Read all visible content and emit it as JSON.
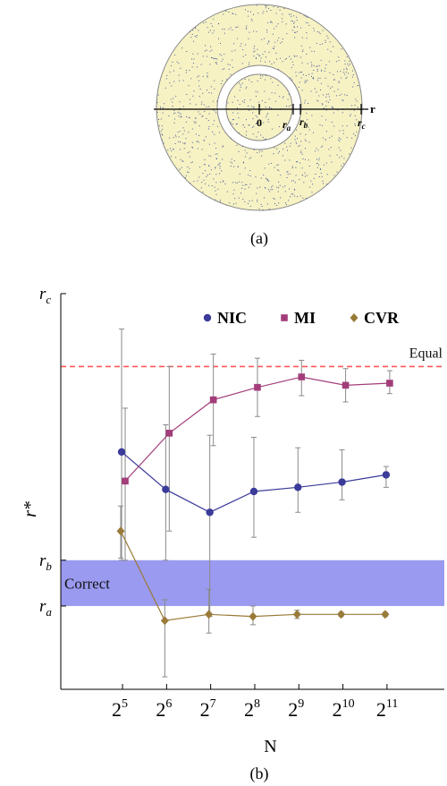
{
  "figure_a": {
    "caption": "(a)",
    "axis_label": "r",
    "labels": [
      {
        "id": "origin",
        "main": "0",
        "sub": ""
      },
      {
        "id": "ra",
        "main": "r",
        "sub": "a"
      },
      {
        "id": "rb",
        "main": "r",
        "sub": "b"
      },
      {
        "id": "rc",
        "main": "r",
        "sub": "c"
      }
    ],
    "colors": {
      "annulus_fill": "#f6f2c4",
      "gap_fill": "#ffffff",
      "outline": "#888888",
      "dots": "#4a5a9a"
    }
  },
  "figure_b": {
    "caption": "(b)"
  },
  "chart_data": {
    "type": "line",
    "xlabel": "N",
    "ylabel": "r*",
    "x_ticks": [
      {
        "base": "2",
        "exp": "5"
      },
      {
        "base": "2",
        "exp": "6"
      },
      {
        "base": "2",
        "exp": "7"
      },
      {
        "base": "2",
        "exp": "8"
      },
      {
        "base": "2",
        "exp": "9"
      },
      {
        "base": "2",
        "exp": "10"
      },
      {
        "base": "2",
        "exp": "11"
      }
    ],
    "x": [
      5,
      6,
      7,
      8,
      9,
      10,
      11
    ],
    "xlim": [
      3.6,
      12.3
    ],
    "y_ticks": [
      {
        "main": "r",
        "sub": "a",
        "value": 0.4
      },
      {
        "main": "r",
        "sub": "b",
        "value": 0.62
      },
      {
        "main": "r",
        "sub": "c",
        "value": 1.9
      }
    ],
    "ylim": [
      0,
      1.9
    ],
    "series": [
      {
        "name": "NIC",
        "marker": "circle",
        "color": "#3b3b9a",
        "values": [
          1.14,
          0.96,
          0.85,
          0.95,
          0.97,
          0.995,
          1.03
        ],
        "err_low": [
          0.62,
          0.62,
          0.35,
          0.73,
          0.85,
          0.91,
          0.97
        ],
        "err_high": [
          1.73,
          1.27,
          1.22,
          1.21,
          1.16,
          1.15,
          1.07
        ]
      },
      {
        "name": "MI",
        "marker": "square",
        "color": "#a23d7a",
        "values": [
          1.0,
          1.23,
          1.39,
          1.45,
          1.5,
          1.46,
          1.47
        ],
        "err_low": [
          0.62,
          0.76,
          1.17,
          1.31,
          1.41,
          1.38,
          1.42
        ],
        "err_high": [
          1.35,
          1.55,
          1.61,
          1.59,
          1.58,
          1.54,
          1.53
        ]
      },
      {
        "name": "CVR",
        "marker": "diamond",
        "color": "#9a7a38",
        "values": [
          0.76,
          0.33,
          0.36,
          0.35,
          0.36,
          0.36,
          0.36
        ],
        "err_low": [
          0.63,
          0.06,
          0.27,
          0.31,
          0.34,
          0.35,
          0.35
        ],
        "err_high": [
          0.88,
          0.43,
          0.48,
          0.4,
          0.38,
          0.37,
          0.37
        ]
      }
    ],
    "reference_line": {
      "label": "Equal",
      "value": 1.55,
      "color": "#ff5a5a"
    },
    "band": {
      "label": "Correct",
      "low": 0.4,
      "high": 0.62,
      "color": "#9a9af0"
    },
    "legend_position": "top-right",
    "grid": false
  }
}
